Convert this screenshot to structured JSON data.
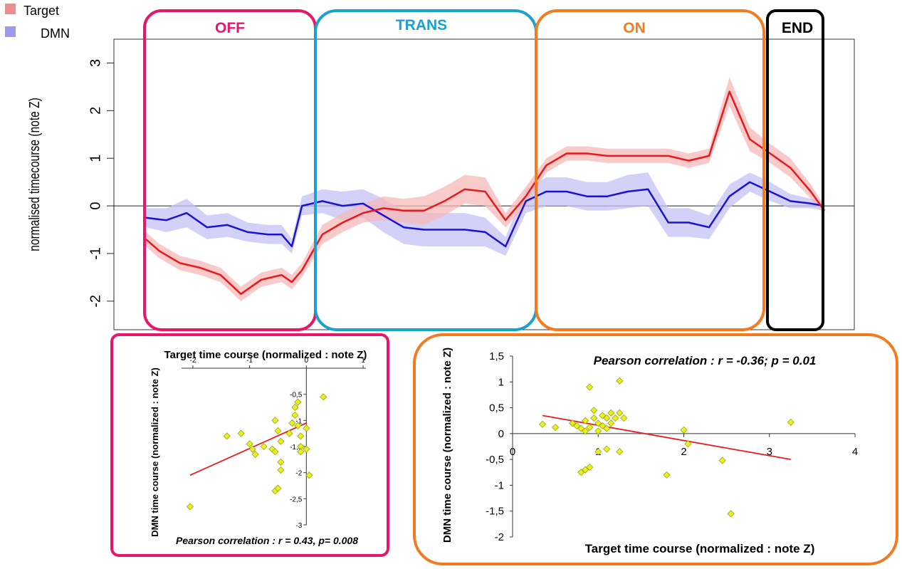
{
  "legend": [
    {
      "label": "Target",
      "color": "#f08c8c"
    },
    {
      "label": "DMN",
      "color": "#9a9aee"
    }
  ],
  "colors": {
    "target_line": "#e8191b",
    "target_band": "#f7b8b8",
    "dmn_line": "#1a12d6",
    "dmn_band": "#c4c2f4",
    "off": "#e5186b",
    "trans": "#1aa1cf",
    "on": "#f47a1f",
    "end": "#000000",
    "scatter_point": "#e9f21c",
    "scatter_point_edge": "#9aa31a",
    "regression": "#e51f1f"
  },
  "phases": [
    {
      "key": "off",
      "label": "OFF"
    },
    {
      "key": "trans",
      "label": "TRANS"
    },
    {
      "key": "on",
      "label": "ON"
    },
    {
      "key": "end",
      "label": "END"
    }
  ],
  "chart_data": [
    {
      "type": "line",
      "ylabel": "normalised timecourse (note Z)",
      "ylim": [
        -2.6,
        3.5
      ],
      "yticks": [
        -2,
        -1,
        0,
        1,
        2,
        3
      ],
      "xlim": [
        0,
        100
      ],
      "grid": false,
      "series": [
        {
          "name": "Target",
          "x": [
            0,
            2,
            5,
            8,
            11,
            14,
            17,
            20,
            21.5,
            23,
            26,
            29,
            32,
            35,
            38,
            41,
            44,
            47,
            50,
            53,
            56,
            59,
            62,
            65,
            68,
            71,
            74,
            75.5,
            77,
            80,
            83,
            86,
            89,
            92,
            95,
            98,
            100
          ],
          "y": [
            -0.7,
            -0.95,
            -1.2,
            -1.3,
            -1.45,
            -1.85,
            -1.55,
            -1.45,
            -1.6,
            -1.35,
            -0.6,
            -0.35,
            -0.15,
            -0.05,
            -0.1,
            -0.1,
            0.1,
            0.35,
            0.3,
            -0.3,
            0.2,
            0.85,
            1.1,
            1.1,
            1.05,
            1.05,
            1.05,
            1.05,
            1.05,
            0.95,
            1.05,
            2.4,
            1.4,
            1.1,
            0.8,
            0.3,
            -0.1
          ],
          "band": [
            0.15,
            0.15,
            0.15,
            0.15,
            0.15,
            0.15,
            0.15,
            0.15,
            0.15,
            0.15,
            0.2,
            0.2,
            0.2,
            0.25,
            0.25,
            0.3,
            0.3,
            0.3,
            0.3,
            0.15,
            0.2,
            0.15,
            0.15,
            0.15,
            0.15,
            0.15,
            0.15,
            0.15,
            0.15,
            0.15,
            0.15,
            0.3,
            0.25,
            0.2,
            0.2,
            0.15,
            0.1
          ]
        },
        {
          "name": "DMN",
          "x": [
            0,
            3,
            6,
            9,
            12,
            15,
            18,
            20,
            21.5,
            23,
            26,
            29,
            32,
            35,
            38,
            41,
            44,
            47,
            50,
            53,
            56,
            59,
            62,
            65,
            68,
            71,
            74,
            77,
            80,
            83,
            86,
            89,
            92,
            95,
            98,
            100
          ],
          "y": [
            -0.25,
            -0.3,
            -0.15,
            -0.45,
            -0.4,
            -0.55,
            -0.6,
            -0.6,
            -0.85,
            0.0,
            0.1,
            0.0,
            0.05,
            -0.2,
            -0.45,
            -0.5,
            -0.5,
            -0.5,
            -0.55,
            -0.85,
            0.1,
            0.3,
            0.3,
            0.2,
            0.2,
            0.3,
            0.35,
            -0.35,
            -0.35,
            -0.45,
            0.2,
            0.5,
            0.3,
            0.1,
            0.05,
            0.0
          ],
          "band": [
            0.2,
            0.25,
            0.3,
            0.25,
            0.25,
            0.2,
            0.2,
            0.2,
            0.15,
            0.2,
            0.25,
            0.3,
            0.3,
            0.35,
            0.35,
            0.35,
            0.35,
            0.35,
            0.3,
            0.2,
            0.25,
            0.3,
            0.3,
            0.3,
            0.3,
            0.35,
            0.35,
            0.3,
            0.3,
            0.25,
            0.25,
            0.2,
            0.2,
            0.15,
            0.1,
            0.1
          ]
        }
      ]
    },
    {
      "type": "scatter",
      "title": "Target time course (normalized : note Z)",
      "ylabel": "DMN time course (normalized : note Z)",
      "annotation": "Pearson correlation : r = 0.43, p= 0.008",
      "xlim": [
        -2.2,
        1.05
      ],
      "ylim": [
        -3.0,
        0.0
      ],
      "xticks": [
        -2,
        -1,
        0,
        1
      ],
      "xtick_labels": [
        "-2",
        "-1",
        "0",
        "1"
      ],
      "yticks": [
        -0.5,
        -1.0,
        -1.5,
        -2.0,
        -2.5,
        -3.0
      ],
      "ytick_labels": [
        "-0,5",
        "-1",
        "-1,5",
        "-2",
        "-2,5",
        "-3"
      ],
      "points": [
        [
          -2.05,
          -2.65
        ],
        [
          -1.4,
          -1.3
        ],
        [
          -1.15,
          -1.25
        ],
        [
          -1.0,
          -1.45
        ],
        [
          -0.95,
          -1.55
        ],
        [
          -0.9,
          -1.65
        ],
        [
          -0.75,
          -1.5
        ],
        [
          -0.6,
          -1.55
        ],
        [
          -0.55,
          -1.6
        ],
        [
          -0.55,
          -1.0
        ],
        [
          -0.5,
          -1.2
        ],
        [
          -0.45,
          -1.4
        ],
        [
          -0.45,
          -1.8
        ],
        [
          -0.45,
          -1.95
        ],
        [
          -0.55,
          -2.35
        ],
        [
          -0.5,
          -2.3
        ],
        [
          -0.3,
          -1.25
        ],
        [
          -0.25,
          -1.05
        ],
        [
          -0.2,
          -0.75
        ],
        [
          -0.2,
          -0.9
        ],
        [
          -0.15,
          -0.65
        ],
        [
          -0.15,
          -1.1
        ],
        [
          -0.1,
          -1.3
        ],
        [
          -0.1,
          -1.5
        ],
        [
          -0.1,
          -1.6
        ],
        [
          0.0,
          -1.15
        ],
        [
          0.0,
          -1.55
        ],
        [
          0.05,
          -2.05
        ],
        [
          0.3,
          -0.55
        ]
      ],
      "regression": [
        [
          -2.05,
          -2.05
        ],
        [
          0.0,
          -1.05
        ]
      ]
    },
    {
      "type": "scatter",
      "ylabel": "DMN time course (normalized : note Z)",
      "xlabel": "Target time course (normalized : note Z)",
      "annotation": "Pearson correlation : r =  -0.36; p = 0.01",
      "xlim": [
        0,
        4
      ],
      "ylim": [
        -2,
        1.5
      ],
      "xticks": [
        0,
        1,
        2,
        3,
        4
      ],
      "xtick_labels": [
        "0",
        "1",
        "2",
        "3",
        "4"
      ],
      "yticks": [
        1.5,
        1.0,
        0.5,
        0.0,
        -0.5,
        -1.0,
        -1.5,
        -2.0
      ],
      "ytick_labels": [
        "1,5",
        "1",
        "0,5",
        "0",
        "-0,5",
        "-1",
        "-1,5",
        "-2"
      ],
      "points": [
        [
          0.35,
          0.18
        ],
        [
          0.5,
          0.12
        ],
        [
          0.7,
          0.2
        ],
        [
          0.75,
          0.15
        ],
        [
          0.8,
          0.1
        ],
        [
          0.85,
          0.05
        ],
        [
          0.85,
          0.25
        ],
        [
          0.9,
          0.9
        ],
        [
          0.9,
          0.12
        ],
        [
          0.95,
          0.45
        ],
        [
          0.95,
          0.3
        ],
        [
          1.0,
          0.2
        ],
        [
          1.0,
          0.05
        ],
        [
          1.05,
          0.35
        ],
        [
          1.05,
          0.15
        ],
        [
          1.1,
          0.3
        ],
        [
          1.1,
          0.1
        ],
        [
          1.1,
          -0.3
        ],
        [
          1.15,
          0.4
        ],
        [
          1.15,
          0.2
        ],
        [
          1.2,
          0.3
        ],
        [
          1.25,
          1.02
        ],
        [
          1.25,
          0.4
        ],
        [
          1.3,
          0.3
        ],
        [
          0.8,
          -0.75
        ],
        [
          0.85,
          -0.7
        ],
        [
          0.9,
          -0.65
        ],
        [
          1.0,
          -0.35
        ],
        [
          1.25,
          -0.35
        ],
        [
          1.8,
          -0.8
        ],
        [
          2.0,
          0.07
        ],
        [
          2.05,
          -0.2
        ],
        [
          2.45,
          -0.52
        ],
        [
          2.55,
          -1.55
        ],
        [
          3.25,
          0.22
        ]
      ],
      "regression": [
        [
          0.35,
          0.35
        ],
        [
          3.25,
          -0.5
        ]
      ]
    }
  ]
}
